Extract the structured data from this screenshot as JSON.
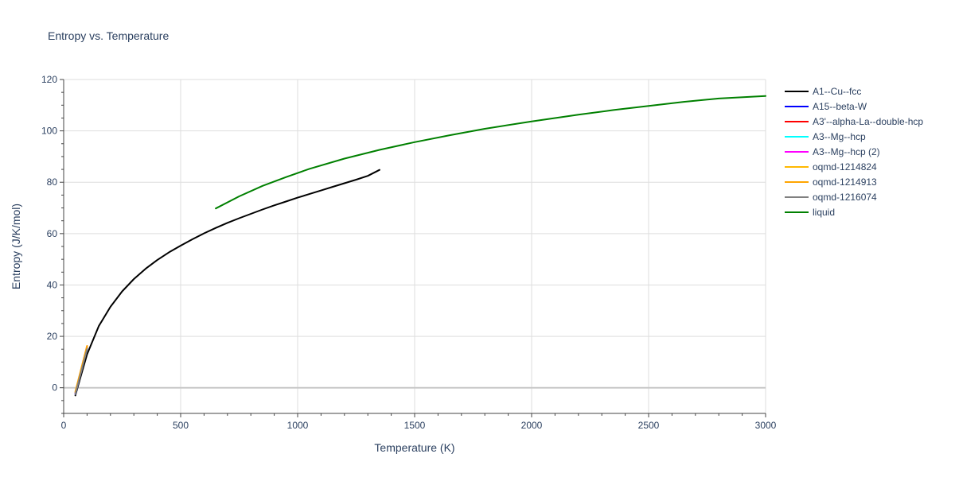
{
  "chart_data": {
    "type": "line",
    "title": "Entropy vs. Temperature",
    "xlabel": "Temperature (K)",
    "ylabel": "Entropy (J/K/mol)",
    "xlim": [
      0,
      3000
    ],
    "ylim": [
      -10,
      120
    ],
    "xticks": [
      0,
      500,
      1000,
      1500,
      2000,
      2500,
      3000
    ],
    "yticks": [
      0,
      20,
      40,
      60,
      80,
      100,
      120
    ],
    "grid": true,
    "legend_position": "right",
    "series": [
      {
        "name": "A1--Cu--fcc",
        "color": "#000000",
        "x": [
          50,
          75,
          100,
          150,
          200,
          250,
          300,
          350,
          400,
          450,
          500,
          550,
          600,
          650,
          700,
          750,
          800,
          850,
          900,
          950,
          1000,
          1050,
          1100,
          1150,
          1200,
          1250,
          1300,
          1350
        ],
        "y": [
          -3,
          5,
          13,
          24,
          31.5,
          37.5,
          42.3,
          46.3,
          49.7,
          52.7,
          55.3,
          57.8,
          60.1,
          62.2,
          64.2,
          66.0,
          67.7,
          69.4,
          71.0,
          72.5,
          74.0,
          75.4,
          76.8,
          78.2,
          79.6,
          81.0,
          82.5,
          84.8
        ]
      },
      {
        "name": "A15--beta-W",
        "color": "#0000ff",
        "x": [
          50,
          100
        ],
        "y": [
          -2.5,
          15.5
        ]
      },
      {
        "name": "A3'--alpha-La--double-hcp",
        "color": "#ff0000",
        "x": [
          50,
          100
        ],
        "y": [
          -2,
          16
        ]
      },
      {
        "name": "A3--Mg--hcp",
        "color": "#00ffff",
        "x": [
          50,
          100
        ],
        "y": [
          -2,
          16
        ]
      },
      {
        "name": "A3--Mg--hcp (2)",
        "color": "#ff00ff",
        "x": [
          50,
          100
        ],
        "y": [
          -2,
          16.2
        ]
      },
      {
        "name": "oqmd-1214824",
        "color": "#ffb800",
        "x": [
          50,
          100
        ],
        "y": [
          -1.8,
          16
        ]
      },
      {
        "name": "oqmd-1214913",
        "color": "#ffa500",
        "x": [
          50,
          100
        ],
        "y": [
          -1.5,
          16.3
        ]
      },
      {
        "name": "oqmd-1216074",
        "color": "#808080",
        "x": [
          50,
          100
        ],
        "y": [
          -2.5,
          15
        ]
      },
      {
        "name": "liquid",
        "color": "#008000",
        "x": [
          650,
          750,
          850,
          950,
          1050,
          1200,
          1350,
          1500,
          1650,
          1800,
          2000,
          2200,
          2350,
          2500,
          2650,
          2800,
          3000
        ],
        "y": [
          69.8,
          74.5,
          78.6,
          82.0,
          85.2,
          89.2,
          92.6,
          95.6,
          98.3,
          100.8,
          103.7,
          106.3,
          108.1,
          109.7,
          111.3,
          112.6,
          113.6
        ]
      }
    ]
  }
}
